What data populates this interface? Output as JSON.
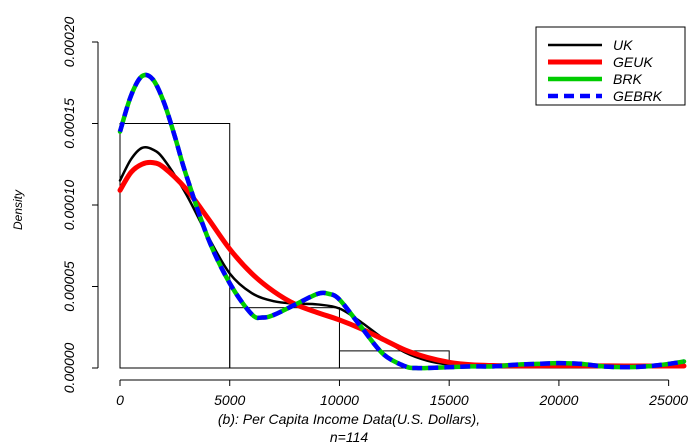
{
  "chart_data": {
    "type": "line",
    "title": "",
    "xlabel_line1": "(b): Per Capita Income Data(U.S. Dollars),",
    "xlabel_line2": "n=114",
    "ylabel": "Density",
    "xlim": [
      0,
      25700
    ],
    "ylim": [
      0,
      0.0002
    ],
    "x_ticks": [
      0,
      5000,
      10000,
      15000,
      20000,
      25000
    ],
    "x_tick_labels": [
      "0",
      "5000",
      "10000",
      "15000",
      "20000",
      "25000"
    ],
    "y_ticks": [
      0,
      5e-05,
      0.0001,
      0.00015,
      0.0002
    ],
    "y_tick_labels": [
      "0.00000",
      "0.00005",
      "0.00010",
      "0.00015",
      "0.00020"
    ],
    "grid": false,
    "legend_position": "top-right",
    "histogram": {
      "bins": [
        0,
        5000,
        10000,
        15000,
        20000,
        25000
      ],
      "density": [
        0.00015,
        3.7e-05,
        1.05e-05,
        5e-07,
        5e-07
      ]
    },
    "series": [
      {
        "name": "UK",
        "color": "#000000",
        "style": "solid",
        "x": [
          0,
          500,
          1000,
          1500,
          2000,
          3000,
          4000,
          5000,
          6000,
          7000,
          8000,
          9000,
          10000,
          11000,
          12000,
          13000,
          14000,
          15000,
          16000,
          17000,
          18000,
          19000,
          20000,
          21000,
          22000,
          23000,
          24000,
          25000,
          25700
        ],
        "y": [
          0.000115,
          0.000128,
          0.000135,
          0.000134,
          0.000128,
          0.000107,
          8.1e-05,
          5.8e-05,
          4.6e-05,
          4.1e-05,
          3.95e-05,
          3.9e-05,
          3.65e-05,
          2.8e-05,
          1.8e-05,
          9.5e-06,
          4.5e-06,
          2e-06,
          1e-06,
          9e-07,
          9e-07,
          1e-06,
          1.2e-06,
          1.2e-06,
          1e-06,
          1e-06,
          1e-06,
          1e-06,
          1e-06
        ]
      },
      {
        "name": "GEUK",
        "color": "#ff0000",
        "style": "solid",
        "x": [
          0,
          500,
          1000,
          1500,
          2000,
          3000,
          4000,
          5000,
          6000,
          7000,
          8000,
          9000,
          10000,
          11000,
          12000,
          13000,
          14000,
          15000,
          16000,
          17000,
          18000,
          19000,
          20000,
          21000,
          22000,
          23000,
          24000,
          25000,
          25700
        ],
        "y": [
          0.000109,
          0.00012,
          0.000125,
          0.000126,
          0.000123,
          0.00011,
          9.2e-05,
          7.3e-05,
          5.8e-05,
          4.7e-05,
          3.9e-05,
          3.4e-05,
          2.95e-05,
          2.4e-05,
          1.75e-05,
          1.1e-05,
          6.5e-06,
          3.5e-06,
          2e-06,
          1.5e-06,
          1.3e-06,
          1.3e-06,
          1.4e-06,
          1.4e-06,
          1.3e-06,
          1.2e-06,
          1.2e-06,
          1.2e-06,
          1.2e-06
        ]
      },
      {
        "name": "BRK",
        "color": "#00cc00",
        "style": "solid",
        "x": [
          0,
          500,
          1000,
          1500,
          2000,
          2500,
          3000,
          4000,
          5000,
          6000,
          6500,
          7000,
          8000,
          9000,
          9500,
          10000,
          11000,
          12000,
          13000,
          13500,
          14000,
          15000,
          16000,
          17000,
          18000,
          19000,
          20000,
          21000,
          22000,
          23000,
          24000,
          25000,
          25700
        ],
        "y": [
          0.000145,
          0.000167,
          0.000179,
          0.000177,
          0.000163,
          0.000142,
          0.000119,
          8e-05,
          5.2e-05,
          3.3e-05,
          3.1e-05,
          3.25e-05,
          3.9e-05,
          4.55e-05,
          4.55e-05,
          4.2e-05,
          2.5e-05,
          8.5e-06,
          1e-06,
          0.0,
          0.0,
          5e-07,
          1e-06,
          1e-06,
          2e-06,
          2.5e-06,
          3e-06,
          2.5e-06,
          1e-06,
          5e-07,
          1e-06,
          2.5e-06,
          4e-06
        ]
      },
      {
        "name": "GEBRK",
        "color": "#0000ff",
        "style": "dashed",
        "x": [
          0,
          500,
          1000,
          1500,
          2000,
          2500,
          3000,
          4000,
          5000,
          6000,
          6500,
          7000,
          8000,
          9000,
          9500,
          10000,
          11000,
          12000,
          13000,
          13500,
          14000,
          15000,
          16000,
          17000,
          18000,
          19000,
          20000,
          21000,
          22000,
          23000,
          24000,
          25000,
          25700
        ],
        "y": [
          0.000145,
          0.000167,
          0.000179,
          0.000177,
          0.000163,
          0.000142,
          0.000119,
          8e-05,
          5.2e-05,
          3.3e-05,
          3.1e-05,
          3.25e-05,
          3.9e-05,
          4.55e-05,
          4.55e-05,
          4.2e-05,
          2.5e-05,
          8.5e-06,
          1e-06,
          0.0,
          0.0,
          5e-07,
          1e-06,
          1e-06,
          2e-06,
          2.5e-06,
          3e-06,
          2.5e-06,
          1e-06,
          5e-07,
          1e-06,
          2.5e-06,
          4e-06
        ]
      }
    ]
  }
}
